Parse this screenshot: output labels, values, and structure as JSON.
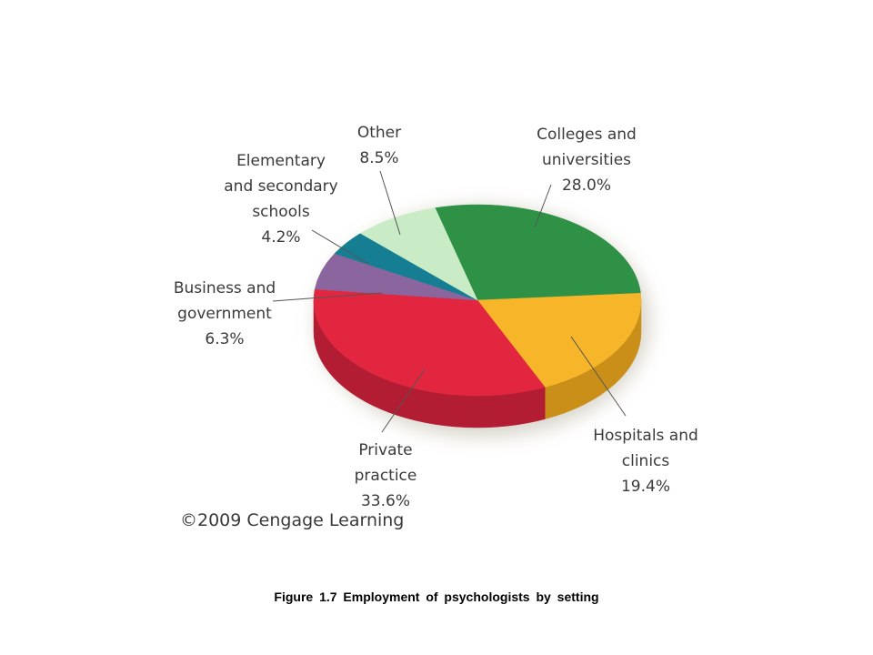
{
  "chart_data": {
    "type": "pie",
    "slices": [
      {
        "label_lines": [
          "Colleges and",
          "universities",
          "28.0%"
        ],
        "value": 28.0,
        "color": "#2e9146",
        "side_color": "#1f6b33",
        "key": "colleges-and-universities"
      },
      {
        "label_lines": [
          "Hospitals and",
          "clinics",
          "19.4%"
        ],
        "value": 19.4,
        "color": "#f7b52a",
        "side_color": "#c98f18",
        "key": "hospitals-and-clinics"
      },
      {
        "label_lines": [
          "Private",
          "practice",
          "33.6%"
        ],
        "value": 33.6,
        "color": "#e32640",
        "side_color": "#b31d33",
        "key": "private-practice"
      },
      {
        "label_lines": [
          "Business and",
          "government",
          "6.3%"
        ],
        "value": 6.3,
        "color": "#8b659d",
        "side_color": "#6a4b7a",
        "key": "business-and-government"
      },
      {
        "label_lines": [
          "Elementary",
          "and secondary",
          "schools",
          "4.2%"
        ],
        "value": 4.2,
        "color": "#157e93",
        "side_color": "#0f5f70",
        "key": "elementary-and-secondary-schools"
      },
      {
        "label_lines": [
          "Other",
          "8.5%"
        ],
        "value": 8.5,
        "color": "#c9ecc6",
        "side_color": "#9fc89b",
        "key": "other"
      }
    ],
    "copyright": "©2009 Cengage Learning"
  },
  "caption": "Figure 1.7  Employment  of psychologists  by setting"
}
